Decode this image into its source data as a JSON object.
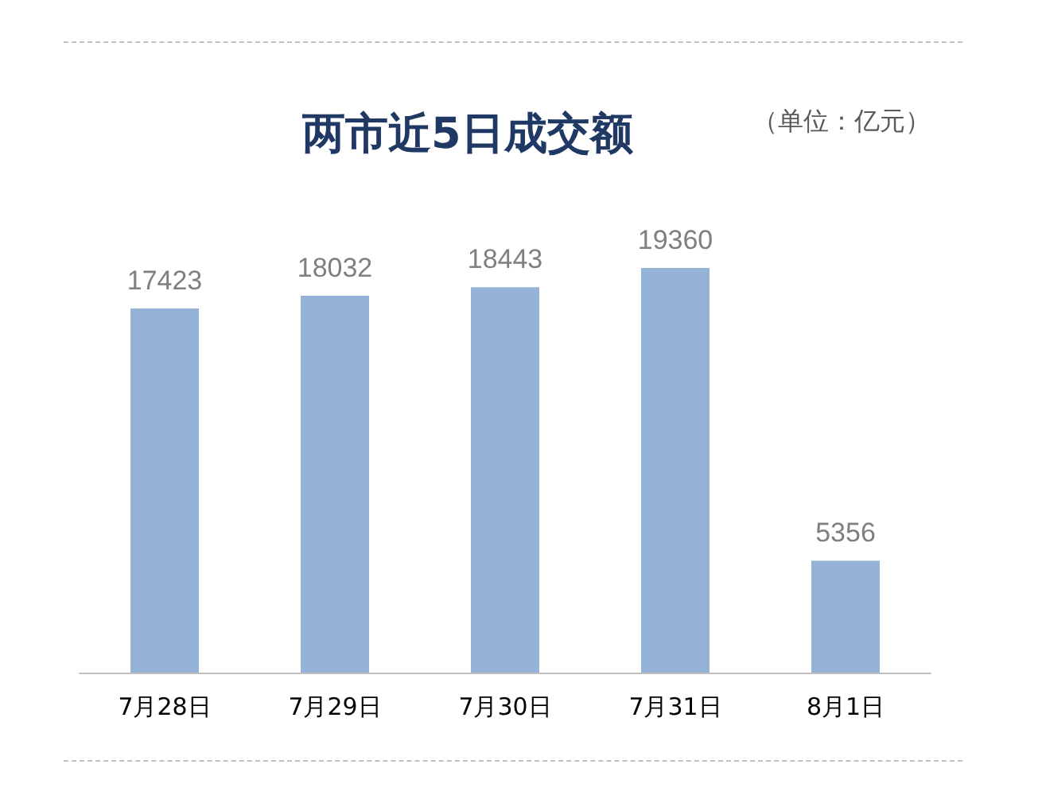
{
  "chart_data": {
    "type": "bar",
    "title": "两市近5日成交额",
    "annotations": [
      "（单位：亿元）"
    ],
    "categories": [
      "7月28日",
      "7月29日",
      "7月30日",
      "7月31日",
      "8月1日"
    ],
    "values": [
      17423,
      18032,
      18443,
      19360,
      5356
    ],
    "color": "#95b3d7",
    "data_labels": true
  }
}
